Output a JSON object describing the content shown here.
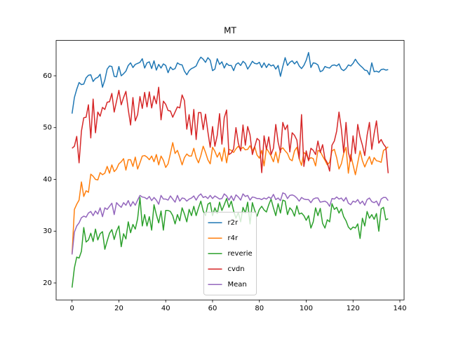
{
  "chart_data": {
    "type": "line",
    "title": "MT",
    "x": [
      0,
      1,
      2,
      3,
      4,
      5,
      6,
      7,
      8,
      9,
      10,
      11,
      12,
      13,
      14,
      15,
      16,
      17,
      18,
      19,
      20,
      21,
      22,
      23,
      24,
      25,
      26,
      27,
      28,
      29,
      30,
      31,
      32,
      33,
      34,
      35,
      36,
      37,
      38,
      39,
      40,
      41,
      42,
      43,
      44,
      45,
      46,
      47,
      48,
      49,
      50,
      51,
      52,
      53,
      54,
      55,
      56,
      57,
      58,
      59,
      60,
      61,
      62,
      63,
      64,
      65,
      66,
      67,
      68,
      69,
      70,
      71,
      72,
      73,
      74,
      75,
      76,
      77,
      78,
      79,
      80,
      81,
      82,
      83,
      84,
      85,
      86,
      87,
      88,
      89,
      90,
      91,
      92,
      93,
      94,
      95,
      96,
      97,
      98,
      99,
      100,
      101,
      102,
      103,
      104,
      105,
      106,
      107,
      108,
      109,
      110,
      111,
      112,
      113,
      114,
      115,
      116,
      117,
      118,
      119,
      120,
      121,
      122,
      123,
      124,
      125,
      126,
      127,
      128,
      129,
      130,
      131,
      132,
      133,
      134,
      135
    ],
    "series": [
      {
        "name": "r2r",
        "color": "#1f77b4",
        "values": [
          52.7,
          55.8,
          57.4,
          58.7,
          58.3,
          58.4,
          59.6,
          60.1,
          60.2,
          58.9,
          59.5,
          59.7,
          60.3,
          57.8,
          59.2,
          61.3,
          61.9,
          61.8,
          59.9,
          59.8,
          61.8,
          60.0,
          60.4,
          60.9,
          62.0,
          62.5,
          61.6,
          62.2,
          62.4,
          62.6,
          63.3,
          61.5,
          62.5,
          62.7,
          61.4,
          62.9,
          61.1,
          62.2,
          61.5,
          62.3,
          62.0,
          60.6,
          61.7,
          61.2,
          61.4,
          62.5,
          62.2,
          62.1,
          60.9,
          60.2,
          61.0,
          61.4,
          61.6,
          61.9,
          62.9,
          63.6,
          63.2,
          62.6,
          63.5,
          63.0,
          61.0,
          61.3,
          63.3,
          62.2,
          62.7,
          61.5,
          62.4,
          62.0,
          62.0,
          61.0,
          62.2,
          62.5,
          62.0,
          62.8,
          62.4,
          61.3,
          62.0,
          62.8,
          62.4,
          62.3,
          62.6,
          61.6,
          62.5,
          61.6,
          62.3,
          61.9,
          62.1,
          61.3,
          62.0,
          59.9,
          61.8,
          63.5,
          62.0,
          62.6,
          62.9,
          62.3,
          62.8,
          61.9,
          61.4,
          62.0,
          63.0,
          64.5,
          61.6,
          62.5,
          62.4,
          62.1,
          60.8,
          61.0,
          61.8,
          61.6,
          61.5,
          62.0,
          62.1,
          61.9,
          62.3,
          61.3,
          61.0,
          61.4,
          62.1,
          61.9,
          62.4,
          63.2,
          62.5,
          62.0,
          61.6,
          61.1,
          61.0,
          60.2,
          62.5,
          60.8,
          60.9,
          60.7,
          61.2,
          61.3,
          61.1,
          61.2
        ]
      },
      {
        "name": "r4r",
        "color": "#ff7f0e",
        "values": [
          25.5,
          34.2,
          35.2,
          36.0,
          39.5,
          36.7,
          37.8,
          37.5,
          41.0,
          40.6,
          40.0,
          39.9,
          41.3,
          40.9,
          41.2,
          42.5,
          41.2,
          42.8,
          41.5,
          42.0,
          43.0,
          43.4,
          44.0,
          41.8,
          43.8,
          43.8,
          42.5,
          44.3,
          42.0,
          43.2,
          44.5,
          44.6,
          44.3,
          43.8,
          44.5,
          43.4,
          44.8,
          42.8,
          44.5,
          43.7,
          42.3,
          43.0,
          45.0,
          47.1,
          45.0,
          45.6,
          44.3,
          42.8,
          44.2,
          44.9,
          44.5,
          44.5,
          46.0,
          44.2,
          43.2,
          44.6,
          46.4,
          45.2,
          43.8,
          43.0,
          46.2,
          45.4,
          44.3,
          45.2,
          43.5,
          46.1,
          43.2,
          45.8,
          45.6,
          45.2,
          45.9,
          46.4,
          45.8,
          46.2,
          45.7,
          45.8,
          46.5,
          45.5,
          46.3,
          44.7,
          44.1,
          45.6,
          42.6,
          46.0,
          45.3,
          44.5,
          43.4,
          45.3,
          43.2,
          45.7,
          46.1,
          45.5,
          45.0,
          43.9,
          43.6,
          45.5,
          46.2,
          44.0,
          42.7,
          45.2,
          44.8,
          43.8,
          44.2,
          44.0,
          42.6,
          45.6,
          45.4,
          44.5,
          43.7,
          42.8,
          43.3,
          45.5,
          45.8,
          44.2,
          42.0,
          43.0,
          45.0,
          46.2,
          41.2,
          44.8,
          42.8,
          40.9,
          43.2,
          45.5,
          43.6,
          42.4,
          43.5,
          44.4,
          42.9,
          44.2,
          43.6,
          43.5,
          43.3,
          45.6,
          45.9,
          46.3
        ]
      },
      {
        "name": "reverie",
        "color": "#2ca02c",
        "values": [
          19.1,
          22.9,
          25.0,
          24.8,
          26.1,
          30.7,
          27.9,
          28.3,
          29.6,
          28.0,
          30.4,
          28.3,
          29.5,
          29.9,
          26.5,
          28.1,
          29.6,
          30.3,
          28.4,
          30.0,
          31.0,
          27.0,
          29.5,
          28.5,
          31.8,
          29.7,
          31.3,
          30.4,
          32.4,
          36.5,
          31.0,
          33.2,
          31.0,
          32.8,
          30.2,
          35.1,
          33.2,
          31.6,
          33.9,
          30.2,
          34.0,
          34.0,
          33.8,
          33.0,
          31.4,
          33.2,
          32.0,
          34.5,
          33.3,
          31.8,
          34.2,
          33.0,
          34.8,
          33.0,
          34.5,
          35.8,
          33.9,
          33.0,
          35.2,
          35.5,
          33.0,
          34.5,
          33.4,
          35.6,
          34.0,
          35.1,
          36.3,
          34.6,
          35.8,
          33.9,
          32.5,
          33.6,
          31.8,
          34.6,
          33.5,
          35.6,
          31.4,
          35.5,
          34.0,
          32.9,
          34.2,
          34.8,
          34.1,
          33.7,
          35.1,
          36.2,
          34.5,
          33.0,
          35.3,
          33.5,
          36.0,
          35.8,
          33.2,
          34.5,
          34.0,
          32.9,
          34.9,
          33.3,
          33.5,
          33.0,
          32.1,
          33.0,
          30.6,
          31.8,
          34.5,
          33.0,
          34.4,
          31.5,
          30.6,
          32.2,
          31.8,
          35.3,
          34.2,
          34.6,
          33.5,
          34.3,
          32.8,
          32.0,
          30.8,
          30.3,
          30.8,
          30.6,
          31.4,
          28.6,
          32.5,
          31.0,
          33.8,
          32.5,
          33.2,
          32.3,
          33.4,
          30.0,
          34.3,
          34.6,
          32.2,
          32.4
        ]
      },
      {
        "name": "cvdn",
        "color": "#d62728",
        "values": [
          46.0,
          46.4,
          48.3,
          43.2,
          49.3,
          51.9,
          52.0,
          54.4,
          48.0,
          55.5,
          49.0,
          53.0,
          52.2,
          53.9,
          53.5,
          54.9,
          55.0,
          56.6,
          53.0,
          55.1,
          57.2,
          54.4,
          55.8,
          57.0,
          53.5,
          50.5,
          55.8,
          51.3,
          52.5,
          56.0,
          53.7,
          56.8,
          54.0,
          56.9,
          53.8,
          56.1,
          54.6,
          57.8,
          51.5,
          55.1,
          54.5,
          53.3,
          53.2,
          52.0,
          53.0,
          54.0,
          53.8,
          56.3,
          55.2,
          49.7,
          52.5,
          48.6,
          53.5,
          47.7,
          52.9,
          52.9,
          49.6,
          52.6,
          49.2,
          46.2,
          50.2,
          46.4,
          48.5,
          52.7,
          46.8,
          51.9,
          53.4,
          44.8,
          45.1,
          45.9,
          50.0,
          47.0,
          45.5,
          50.5,
          46.6,
          50.2,
          48.6,
          44.8,
          46.3,
          47.9,
          47.5,
          41.3,
          48.4,
          45.8,
          48.2,
          44.8,
          46.0,
          50.6,
          47.2,
          45.2,
          51.0,
          49.6,
          50.5,
          45.3,
          49.0,
          48.5,
          47.6,
          44.0,
          52.5,
          42.5,
          45.5,
          43.6,
          46.0,
          45.6,
          44.8,
          47.4,
          45.2,
          46.7,
          44.0,
          43.2,
          41.6,
          46.6,
          47.4,
          49.3,
          53.0,
          49.8,
          45.2,
          51.0,
          45.2,
          43.5,
          48.4,
          45.0,
          50.6,
          48.2,
          46.6,
          44.6,
          48.5,
          51.0,
          45.8,
          48.8,
          51.3,
          47.0,
          47.7,
          46.8,
          46.2,
          41.2
        ]
      },
      {
        "name": "Mean",
        "color": "#9467bd",
        "values": [
          25.5,
          29.8,
          31.0,
          31.6,
          32.6,
          32.9,
          32.7,
          33.5,
          33.8,
          33.0,
          33.9,
          33.3,
          34.5,
          32.8,
          34.5,
          34.2,
          34.8,
          35.4,
          33.2,
          35.5,
          35.0,
          34.6,
          35.5,
          35.0,
          35.9,
          34.8,
          35.7,
          35.0,
          36.0,
          36.9,
          36.6,
          36.5,
          36.2,
          36.7,
          35.9,
          36.5,
          36.0,
          35.2,
          36.9,
          36.2,
          36.2,
          36.0,
          36.8,
          36.2,
          35.6,
          36.9,
          35.8,
          36.4,
          36.3,
          35.8,
          36.2,
          36.4,
          36.8,
          36.0,
          36.8,
          37.2,
          36.5,
          36.7,
          36.3,
          36.9,
          36.3,
          36.8,
          36.5,
          36.2,
          36.3,
          37.2,
          36.8,
          36.0,
          36.8,
          35.9,
          37.0,
          36.6,
          36.0,
          37.2,
          36.7,
          36.9,
          36.0,
          36.6,
          36.5,
          36.3,
          36.3,
          36.1,
          36.4,
          36.2,
          36.6,
          36.3,
          37.1,
          36.1,
          36.4,
          35.9,
          37.4,
          37.2,
          36.3,
          36.9,
          37.0,
          36.8,
          36.4,
          35.8,
          36.5,
          36.2,
          36.1,
          36.1,
          35.5,
          36.2,
          36.4,
          36.4,
          35.6,
          35.7,
          35.8,
          35.5,
          34.8,
          36.3,
          36.2,
          36.6,
          36.2,
          36.4,
          35.8,
          36.5,
          35.4,
          35.1,
          35.8,
          35.6,
          36.1,
          35.3,
          35.8,
          35.0,
          36.1,
          36.4,
          35.7,
          35.5,
          35.8,
          34.9,
          36.2,
          36.5,
          36.5,
          35.9
        ]
      }
    ],
    "xlim": [
      -6.8,
      141.8
    ],
    "ylim": [
      16.72,
      66.83
    ],
    "xticks": [
      0,
      20,
      40,
      60,
      80,
      100,
      120,
      140
    ],
    "yticks": [
      20,
      30,
      40,
      50,
      60
    ],
    "legend": "lower center"
  }
}
